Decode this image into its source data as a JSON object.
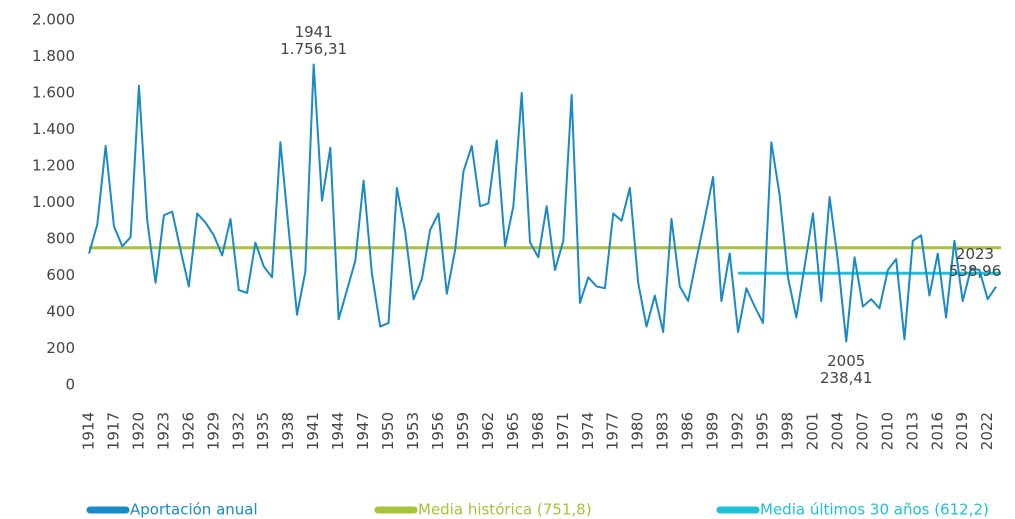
{
  "chart_data": {
    "type": "line",
    "x": [
      1914,
      1915,
      1916,
      1917,
      1918,
      1919,
      1920,
      1921,
      1922,
      1923,
      1924,
      1925,
      1926,
      1927,
      1928,
      1929,
      1930,
      1931,
      1932,
      1933,
      1934,
      1935,
      1936,
      1937,
      1938,
      1939,
      1940,
      1941,
      1942,
      1943,
      1944,
      1945,
      1946,
      1947,
      1948,
      1949,
      1950,
      1951,
      1952,
      1953,
      1954,
      1955,
      1956,
      1957,
      1958,
      1959,
      1960,
      1961,
      1962,
      1963,
      1964,
      1965,
      1966,
      1967,
      1968,
      1969,
      1970,
      1971,
      1972,
      1973,
      1974,
      1975,
      1976,
      1977,
      1978,
      1979,
      1980,
      1981,
      1982,
      1983,
      1984,
      1985,
      1986,
      1987,
      1988,
      1989,
      1990,
      1991,
      1992,
      1993,
      1994,
      1995,
      1996,
      1997,
      1998,
      1999,
      2000,
      2001,
      2002,
      2003,
      2004,
      2005,
      2006,
      2007,
      2008,
      2009,
      2010,
      2011,
      2012,
      2013,
      2014,
      2015,
      2016,
      2017,
      2018,
      2019,
      2020,
      2021,
      2022,
      2023
    ],
    "series": [
      {
        "name": "Aportación anual",
        "color": "#1a8ac6",
        "values": [
          720,
          880,
          1310,
          870,
          760,
          810,
          1640,
          900,
          560,
          930,
          950,
          740,
          540,
          940,
          890,
          820,
          710,
          910,
          520,
          505,
          780,
          650,
          590,
          1330,
          850,
          385,
          620,
          1756.31,
          1010,
          1300,
          360,
          520,
          680,
          1120,
          610,
          320,
          340,
          1080,
          840,
          470,
          580,
          850,
          940,
          500,
          740,
          1170,
          1310,
          980,
          995,
          1340,
          760,
          980,
          1600,
          780,
          700,
          980,
          630,
          790,
          1590,
          450,
          590,
          540,
          530,
          940,
          900,
          1080,
          560,
          320,
          490,
          290,
          910,
          540,
          460,
          690,
          910,
          1140,
          460,
          720,
          290,
          530,
          430,
          340,
          1330,
          1040,
          590,
          370,
          650,
          940,
          460,
          1030,
          680,
          238.41,
          700,
          430,
          470,
          420,
          630,
          690,
          250,
          790,
          820,
          490,
          720,
          370,
          790,
          460,
          640,
          630,
          470,
          538.96
        ]
      }
    ],
    "reference_lines": [
      {
        "name": "Media histórica (751,8)",
        "color": "#a5c43a",
        "value": 751.8,
        "x": [
          1914,
          2023
        ]
      },
      {
        "name": "Media últimos 30 años (612,2)",
        "color": "#1fc1d9",
        "value": 612.2,
        "x": [
          1992,
          2023
        ]
      }
    ],
    "annotations": [
      {
        "x": 1941,
        "text": "1.756,31"
      },
      {
        "x": 2005,
        "text": "238,41"
      },
      {
        "x": 2023,
        "text": "538,96"
      }
    ],
    "xlim": [
      1914,
      2023
    ],
    "xticks": [
      1914,
      1917,
      1920,
      1923,
      1926,
      1929,
      1932,
      1935,
      1938,
      1941,
      1944,
      1947,
      1950,
      1953,
      1956,
      1959,
      1962,
      1965,
      1968,
      1971,
      1974,
      1977,
      1980,
      1983,
      1986,
      1989,
      1992,
      1995,
      1998,
      2001,
      2004,
      2007,
      2010,
      2013,
      2016,
      2019,
      2022
    ],
    "ylim": [
      0,
      2000
    ],
    "yticks": [
      0,
      200,
      400,
      600,
      800,
      {
        "value": 1000,
        "label": "1.000"
      },
      {
        "value": 1200,
        "label": "1.200"
      },
      {
        "value": 1400,
        "label": "1.400"
      },
      {
        "value": 1600,
        "label": "1.600"
      },
      {
        "value": 1800,
        "label": "1.800"
      },
      {
        "value": 2000,
        "label": "2.000"
      }
    ],
    "grid": false
  }
}
